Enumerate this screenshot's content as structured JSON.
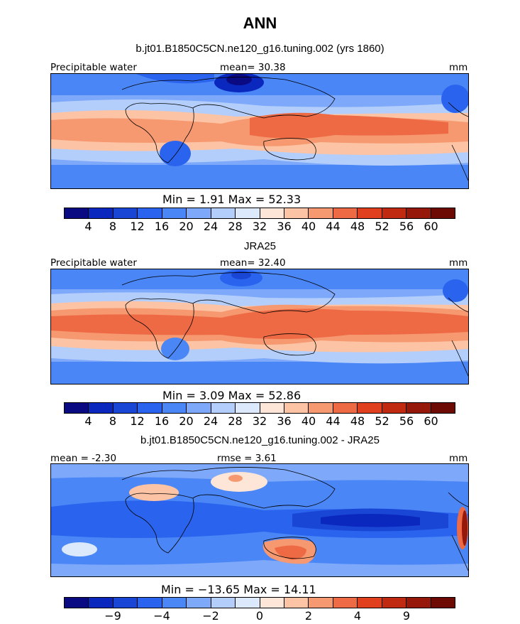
{
  "figure": {
    "title": "ANN",
    "panels": [
      {
        "subtitle": "b.jt01.B1850C5CN.ne120_g16.tuning.002 (yrs 1860)",
        "left_label": "Precipitable water",
        "center_label": "mean=  30.38",
        "right_label": "mm",
        "minmax": "Min =    1.91  Max =   52.33",
        "variant": "model"
      },
      {
        "subtitle": "JRA25",
        "left_label": "Precipitable water",
        "center_label": "mean=  32.40",
        "right_label": "mm",
        "minmax": "Min =    3.09  Max =   52.86",
        "variant": "obs"
      },
      {
        "subtitle": "b.jt01.B1850C5CN.ne120_g16.tuning.002 - JRA25",
        "left_label": "mean =  -2.30",
        "center_label": "rmse =    3.61",
        "right_label": "mm",
        "minmax": "Min = −13.65  Max =   14.11",
        "variant": "diff"
      }
    ],
    "colorbar_abs": {
      "colors": [
        "#0a0a82",
        "#0a28be",
        "#1a46d6",
        "#2a64ee",
        "#4a86f6",
        "#7ea8fa",
        "#b4cefc",
        "#dce8fc",
        "#fde6d8",
        "#fcc4a4",
        "#f69870",
        "#ee6a44",
        "#e0401e",
        "#c02a10",
        "#96180a",
        "#6e0a04"
      ],
      "ticks": [
        "4",
        "8",
        "12",
        "16",
        "20",
        "24",
        "28",
        "32",
        "36",
        "40",
        "44",
        "48",
        "52",
        "56",
        "60"
      ]
    },
    "colorbar_diff": {
      "colors": [
        "#0a0a82",
        "#0a28be",
        "#1a46d6",
        "#2a64ee",
        "#4a86f6",
        "#7ea8fa",
        "#b4cefc",
        "#dce8fc",
        "#fde6d8",
        "#fcc4a4",
        "#f69870",
        "#ee6a44",
        "#e0401e",
        "#c02a10",
        "#96180a",
        "#6e0a04"
      ],
      "ticks": [
        "−9",
        "−4",
        "−2",
        "0",
        "2",
        "4",
        "9"
      ],
      "tick_positions": [
        2,
        4,
        6,
        8,
        10,
        12,
        14
      ]
    }
  }
}
